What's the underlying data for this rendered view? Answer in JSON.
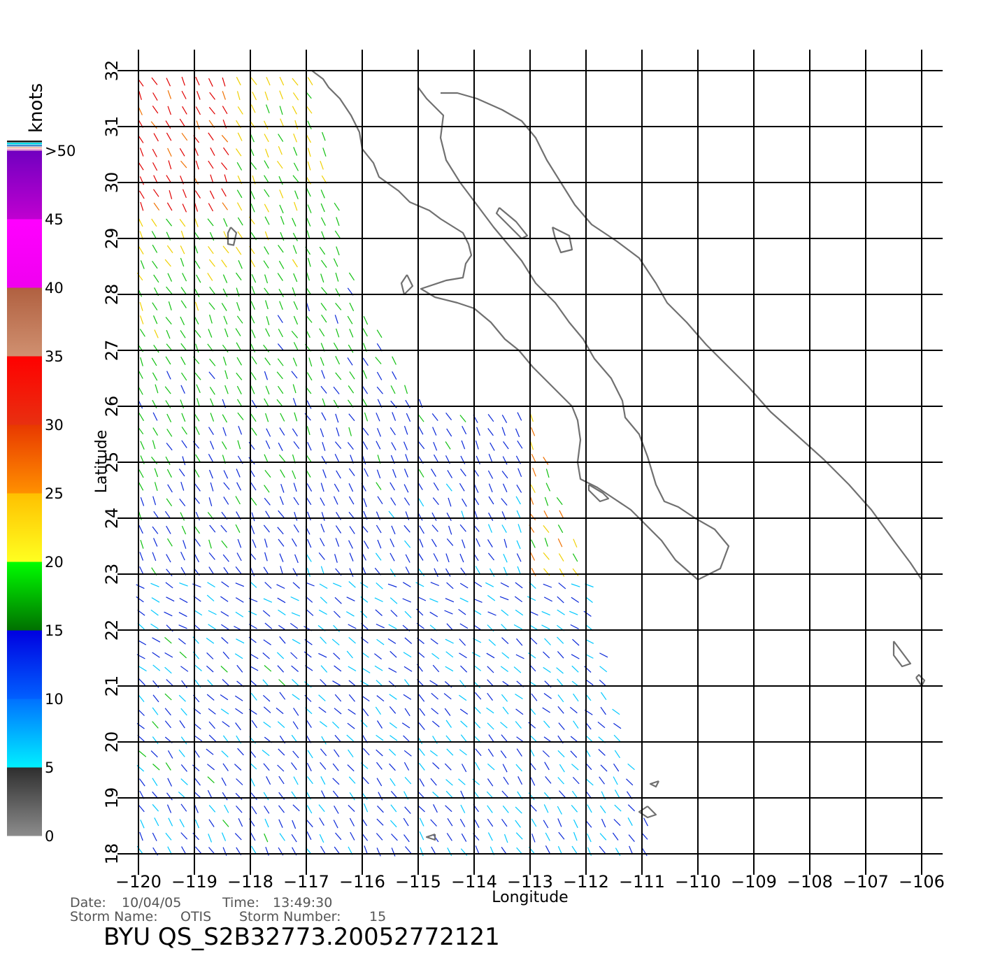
{
  "map": {
    "lon_range": [
      -120,
      -106
    ],
    "lat_range": [
      18,
      32
    ],
    "lon_ticks": [
      -120,
      -119,
      -118,
      -117,
      -116,
      -115,
      -114,
      -113,
      -112,
      -111,
      -110,
      -109,
      -108,
      -107,
      -106
    ],
    "lat_ticks": [
      18,
      19,
      20,
      21,
      22,
      23,
      24,
      25,
      26,
      27,
      28,
      29,
      30,
      31,
      32
    ],
    "lon_tick_labels": [
      "−120",
      "−119",
      "−118",
      "−117",
      "−116",
      "−115",
      "−114",
      "−113",
      "−112",
      "−111",
      "−110",
      "−109",
      "−108",
      "−107",
      "−106"
    ],
    "lat_tick_labels": [
      "18",
      "19",
      "20",
      "21",
      "22",
      "23",
      "24",
      "25",
      "26",
      "27",
      "28",
      "29",
      "30",
      "31",
      "32"
    ],
    "xlabel": "Longitude",
    "ylabel": "Latitude",
    "grid": true,
    "coastline_color": "#707070"
  },
  "legend": {
    "unit": "knots",
    "labels": [
      "0",
      "5",
      "10",
      "15",
      "20",
      "25",
      "30",
      "35",
      "40",
      "45",
      ">50"
    ],
    "bands": [
      {
        "from": 0,
        "to": 5,
        "top_color": "#2e2e2e",
        "bottom_color": "#8c8c8c"
      },
      {
        "from": 5,
        "to": 10,
        "top_color": "#0070ff",
        "bottom_color": "#00f0ff"
      },
      {
        "from": 10,
        "to": 15,
        "top_color": "#0000e0",
        "bottom_color": "#0060ff"
      },
      {
        "from": 15,
        "to": 20,
        "top_color": "#00ff00",
        "bottom_color": "#007000"
      },
      {
        "from": 20,
        "to": 25,
        "top_color": "#ffc000",
        "bottom_color": "#ffff20"
      },
      {
        "from": 25,
        "to": 30,
        "top_color": "#e83800",
        "bottom_color": "#ff9000"
      },
      {
        "from": 30,
        "to": 35,
        "top_color": "#ff0000",
        "bottom_color": "#e83010"
      },
      {
        "from": 35,
        "to": 40,
        "top_color": "#b06040",
        "bottom_color": "#d09070"
      },
      {
        "from": 40,
        "to": 45,
        "top_color": "#ff00ff",
        "bottom_color": "#f000f0"
      },
      {
        "from": 45,
        "to": 50,
        "top_color": "#7000c0",
        "bottom_color": "#c000d0"
      }
    ]
  },
  "wind_speed_colors": {
    "lt_5": "#555555",
    "5_10": "#00c8ff",
    "10_15": "#0a28d8",
    "15_20": "#10c010",
    "20_25": "#f0d000",
    "25_30": "#f07000",
    "30_35": "#e00000"
  },
  "footer": {
    "date_label": "Date:",
    "date_value": "10/04/05",
    "time_label": "Time:",
    "time_value": "13:49:30",
    "storm_name_label": "Storm Name:",
    "storm_name_value": "OTIS",
    "storm_number_label": "Storm Number:",
    "storm_number_value": "15",
    "title": "BYU  QS_S2B32773.20052772121"
  }
}
